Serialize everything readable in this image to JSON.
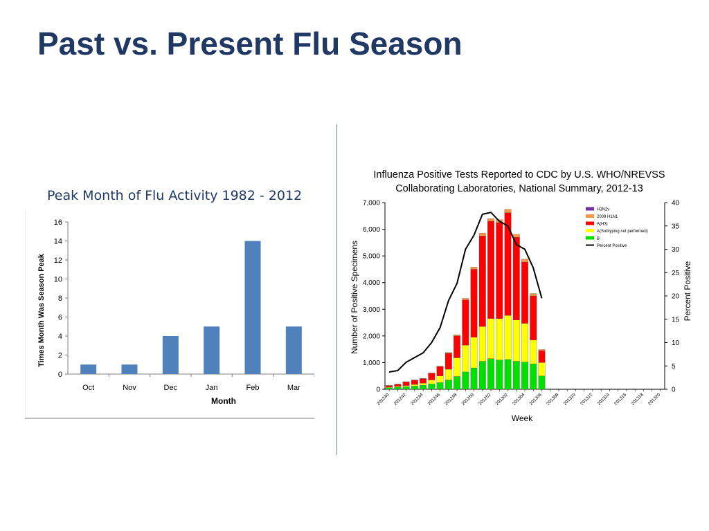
{
  "slide": {
    "title": "Past vs. Present Flu Season",
    "left_caption": "Peak Month of Flu Activity 1982 - 2012"
  },
  "chart_data": [
    {
      "type": "bar",
      "categories": [
        "Oct",
        "Nov",
        "Dec",
        "Jan",
        "Feb",
        "Mar"
      ],
      "values": [
        1,
        1,
        4,
        5,
        14,
        5
      ],
      "xlabel": "Month",
      "ylabel": "Times Month Was Season Peak",
      "ylim": [
        0,
        16
      ],
      "yticks": [
        "0",
        "2",
        "4",
        "6",
        "8",
        "10",
        "12",
        "14",
        "16"
      ],
      "grid": false,
      "legend": "none",
      "color": "#4f81bd"
    },
    {
      "type": "bar",
      "stacked": true,
      "title": "Influenza Positive Tests Reported to CDC by U.S. WHO/NREVSS Collaborating Laboratories, National Summary, 2012-13",
      "title_lines": [
        "Influenza Positive Tests Reported to CDC by U.S. WHO/NREVSS",
        "Collaborating Laboratories, National Summary, 2012-13"
      ],
      "xlabel": "Week",
      "ylabel": "Number of Positive Specimens",
      "y2label": "Percent Positive",
      "ylim": [
        0,
        7000
      ],
      "y2lim": [
        0,
        40
      ],
      "yticks": [
        "0",
        "1,000",
        "2,000",
        "3,000",
        "4,000",
        "5,000",
        "6,000",
        "7,000"
      ],
      "y2ticks": [
        "0",
        "5",
        "10",
        "15",
        "20",
        "25",
        "30",
        "35",
        "40"
      ],
      "x_tick_labels": [
        "201240",
        "201242",
        "201244",
        "201246",
        "201248",
        "201250",
        "201252",
        "201302",
        "201304",
        "201306",
        "201308",
        "201310",
        "201312",
        "201314",
        "201316",
        "201318",
        "201320"
      ],
      "week_slots": 33,
      "legend": "top-right",
      "legend_entries": [
        {
          "name": "H3N2v",
          "color": "#7030a0",
          "type": "bar"
        },
        {
          "name": "2009 H1N1",
          "color": "#f79646",
          "type": "bar"
        },
        {
          "name": "A(H3)",
          "color": "#ff0000",
          "type": "bar"
        },
        {
          "name": "A(Subtyping not performed)",
          "color": "#ffff00",
          "type": "bar"
        },
        {
          "name": "B",
          "color": "#00e000",
          "type": "bar"
        },
        {
          "name": "Percent Positive",
          "color": "#000000",
          "type": "line"
        }
      ],
      "series": [
        {
          "name": "B",
          "color": "#00e000",
          "values": [
            60,
            80,
            100,
            120,
            150,
            200,
            250,
            350,
            480,
            650,
            800,
            1050,
            1150,
            1100,
            1120,
            1050,
            1020,
            950,
            500
          ]
        },
        {
          "name": "A(Subtyping not performed)",
          "color": "#ffff00",
          "values": [
            20,
            30,
            40,
            60,
            80,
            150,
            250,
            400,
            700,
            1000,
            1150,
            1300,
            1500,
            1550,
            1650,
            1550,
            1450,
            900,
            500
          ]
        },
        {
          "name": "A(H3)",
          "color": "#ff0000",
          "values": [
            60,
            80,
            140,
            160,
            170,
            250,
            350,
            600,
            820,
            1700,
            2550,
            3400,
            3650,
            3600,
            3850,
            3100,
            2300,
            1650,
            450
          ]
        },
        {
          "name": "2009 H1N1",
          "color": "#f79646",
          "values": [
            5,
            5,
            5,
            10,
            10,
            15,
            20,
            30,
            40,
            60,
            80,
            100,
            100,
            110,
            130,
            110,
            110,
            90,
            40
          ]
        },
        {
          "name": "H3N2v",
          "color": "#7030a0",
          "values": [
            0,
            0,
            0,
            0,
            0,
            0,
            0,
            0,
            0,
            0,
            0,
            0,
            0,
            0,
            0,
            0,
            0,
            0,
            0
          ]
        }
      ],
      "line_series": {
        "name": "Percent Positive",
        "color": "#000000",
        "values": [
          3.7,
          4.0,
          5.8,
          6.8,
          7.8,
          10.0,
          13.2,
          19.0,
          22.7,
          30.0,
          33.0,
          37.5,
          37.9,
          36.0,
          35.0,
          31.0,
          30.0,
          26.0,
          19.5
        ]
      }
    }
  ]
}
